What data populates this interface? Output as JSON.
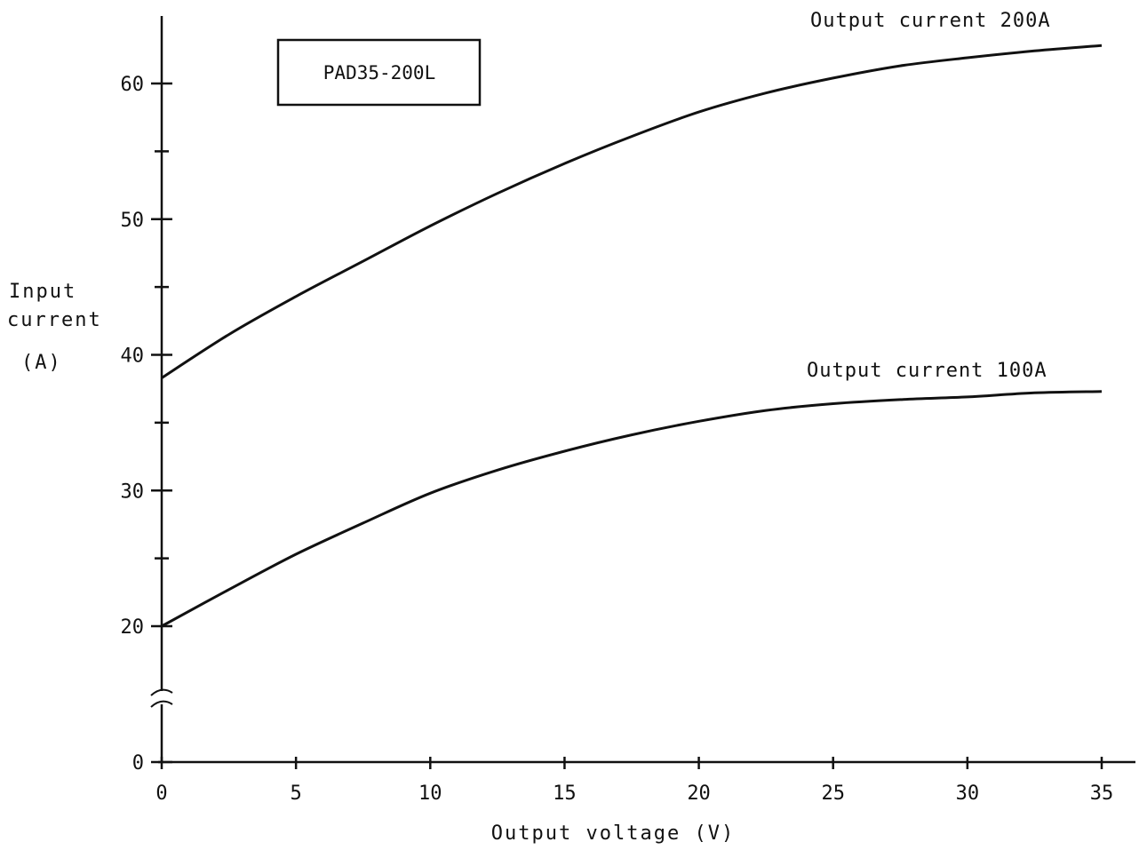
{
  "chart_data": {
    "type": "line",
    "title": "PAD35-200L",
    "xlabel": "Output voltage (V)",
    "ylabel_lines": [
      "Input",
      "current",
      "(A)"
    ],
    "xlim": [
      0,
      35
    ],
    "ylim": [
      0,
      65
    ],
    "y_axis_break": true,
    "x_ticks": [
      0,
      5,
      10,
      15,
      20,
      25,
      30,
      35
    ],
    "x_tick_labels": [
      "0",
      "5",
      "10",
      "15",
      "20",
      "25",
      "30",
      "35"
    ],
    "y_ticks": [
      0,
      20,
      30,
      40,
      50,
      60
    ],
    "y_tick_labels": [
      "0",
      "20",
      "30",
      "40",
      "50",
      "60"
    ],
    "y_minor_ticks": [
      25,
      35,
      45,
      55
    ],
    "grid": false,
    "series": [
      {
        "name": "Output current 200A",
        "x": [
          0,
          2.5,
          5,
          7.5,
          10,
          12.5,
          15,
          17.5,
          20,
          22.5,
          25,
          27.5,
          30,
          32.5,
          35
        ],
        "y": [
          38.3,
          41.5,
          44.3,
          46.9,
          49.5,
          51.9,
          54.1,
          56.1,
          57.9,
          59.3,
          60.4,
          61.3,
          61.9,
          62.4,
          62.8
        ]
      },
      {
        "name": "Output current 100A",
        "x": [
          0,
          2.5,
          5,
          7.5,
          10,
          12.5,
          15,
          17.5,
          20,
          22.5,
          25,
          27.5,
          30,
          32.5,
          35
        ],
        "y": [
          20.0,
          22.7,
          25.3,
          27.6,
          29.8,
          31.5,
          32.9,
          34.1,
          35.1,
          35.9,
          36.4,
          36.7,
          36.9,
          37.2,
          37.3
        ]
      }
    ]
  }
}
